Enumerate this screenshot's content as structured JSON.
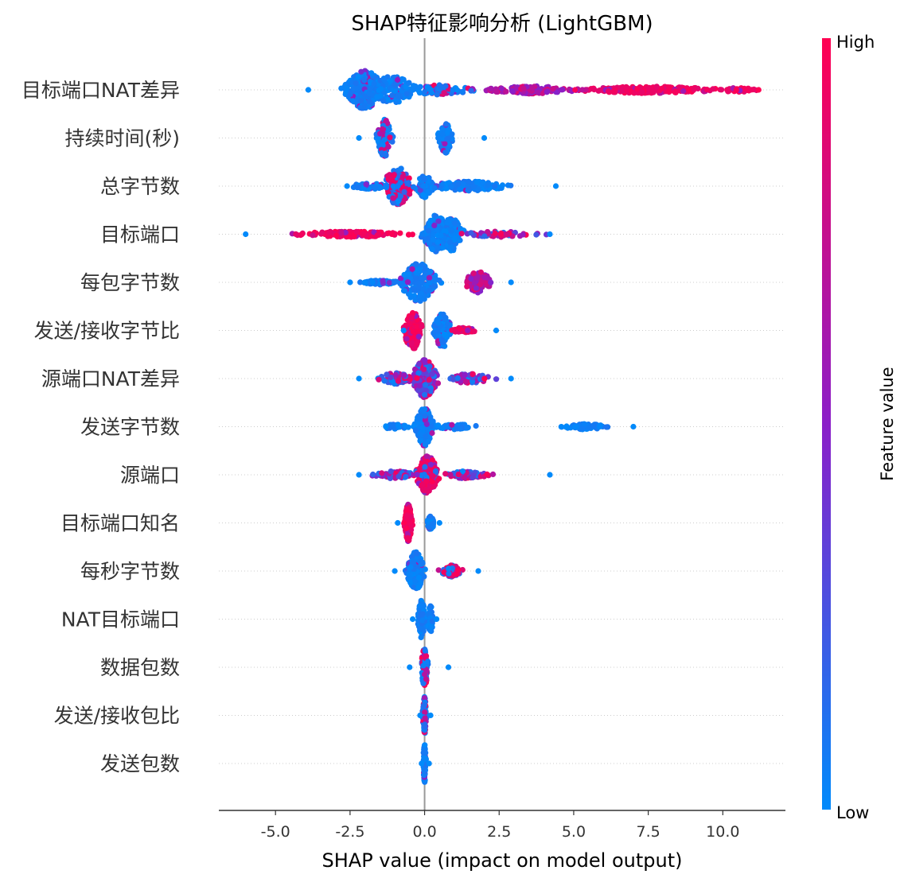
{
  "chart_data": {
    "type": "scatter",
    "subtype": "shap-beeswarm",
    "title": "SHAP特征影响分析 (LightGBM)",
    "xlabel": "SHAP value (impact on model output)",
    "xlim": [
      -6.9,
      12.1
    ],
    "xticks": [
      -5.0,
      -2.5,
      0.0,
      2.5,
      5.0,
      7.5,
      10.0
    ],
    "xtick_labels": [
      "-5.0",
      "-2.5",
      "0.0",
      "2.5",
      "5.0",
      "7.5",
      "10.0"
    ],
    "zero_line": 0.0,
    "colorbar": {
      "label": "Feature value",
      "high": "High",
      "low": "Low",
      "low_color": "#008afb",
      "high_color": "#ff0052",
      "mid_color": "#8b1ec8"
    },
    "features": [
      {
        "name": "目标端口NAT差异",
        "clusters": [
          {
            "c": -2.0,
            "s": 0.55,
            "n": 220,
            "h": 1.0,
            "col": "low"
          },
          {
            "c": -1.1,
            "s": 0.7,
            "n": 120,
            "h": 0.7,
            "col": "low"
          },
          {
            "c": 0.5,
            "s": 0.9,
            "n": 80,
            "h": 0.25,
            "col": "mixlow"
          },
          {
            "c": 3.5,
            "s": 1.3,
            "n": 120,
            "h": 0.2,
            "col": "mid"
          },
          {
            "c": 7.5,
            "s": 1.9,
            "n": 200,
            "h": 0.18,
            "col": "high"
          },
          {
            "c": 10.5,
            "s": 0.5,
            "n": 30,
            "h": 0.12,
            "col": "high"
          }
        ],
        "min": -3.9,
        "max": 11.2
      },
      {
        "name": "持续时间(秒)",
        "clusters": [
          {
            "c": -1.35,
            "s": 0.2,
            "n": 110,
            "h": 1.0,
            "col": "lowmix"
          },
          {
            "c": 0.7,
            "s": 0.2,
            "n": 90,
            "h": 0.8,
            "col": "low"
          }
        ],
        "min": -2.2,
        "max": 2.0
      },
      {
        "name": "总字节数",
        "clusters": [
          {
            "c": -0.9,
            "s": 0.4,
            "n": 160,
            "h": 1.0,
            "col": "mixhigh"
          },
          {
            "c": 0.0,
            "s": 0.25,
            "n": 60,
            "h": 0.6,
            "col": "low"
          },
          {
            "c": 1.5,
            "s": 1.1,
            "n": 130,
            "h": 0.25,
            "col": "low"
          },
          {
            "c": -1.8,
            "s": 0.6,
            "n": 60,
            "h": 0.15,
            "col": "low"
          }
        ],
        "min": -2.6,
        "max": 4.4
      },
      {
        "name": "目标端口",
        "clusters": [
          {
            "c": 0.4,
            "s": 0.35,
            "n": 170,
            "h": 1.0,
            "col": "low"
          },
          {
            "c": 0.9,
            "s": 0.3,
            "n": 100,
            "h": 0.9,
            "col": "low"
          },
          {
            "c": -2.5,
            "s": 1.5,
            "n": 160,
            "h": 0.15,
            "col": "high"
          },
          {
            "c": 2.5,
            "s": 1.0,
            "n": 60,
            "h": 0.15,
            "col": "mix"
          }
        ],
        "min": -6.0,
        "max": 4.2
      },
      {
        "name": "每包字节数",
        "clusters": [
          {
            "c": -0.2,
            "s": 0.5,
            "n": 190,
            "h": 1.0,
            "col": "low"
          },
          {
            "c": 1.8,
            "s": 0.4,
            "n": 110,
            "h": 0.55,
            "col": "mid"
          },
          {
            "c": -1.5,
            "s": 0.5,
            "n": 60,
            "h": 0.12,
            "col": "low"
          }
        ],
        "min": -2.5,
        "max": 2.9
      },
      {
        "name": "发送/接收字节比",
        "clusters": [
          {
            "c": -0.4,
            "s": 0.25,
            "n": 130,
            "h": 1.0,
            "col": "high"
          },
          {
            "c": 0.6,
            "s": 0.25,
            "n": 100,
            "h": 0.9,
            "col": "low"
          },
          {
            "c": 1.3,
            "s": 0.35,
            "n": 50,
            "h": 0.15,
            "col": "high"
          }
        ],
        "min": -0.7,
        "max": 2.4
      },
      {
        "name": "源端口NAT差异",
        "clusters": [
          {
            "c": 0.0,
            "s": 0.35,
            "n": 230,
            "h": 1.0,
            "col": "mix"
          },
          {
            "c": -1.0,
            "s": 0.5,
            "n": 60,
            "h": 0.3,
            "col": "mix"
          },
          {
            "c": 1.5,
            "s": 0.6,
            "n": 70,
            "h": 0.25,
            "col": "mix"
          }
        ],
        "min": -2.2,
        "max": 2.9
      },
      {
        "name": "发送字节数",
        "clusters": [
          {
            "c": 0.0,
            "s": 0.25,
            "n": 170,
            "h": 1.0,
            "col": "low"
          },
          {
            "c": -1.0,
            "s": 0.4,
            "n": 30,
            "h": 0.12,
            "col": "low"
          },
          {
            "c": 1.0,
            "s": 0.6,
            "n": 40,
            "h": 0.15,
            "col": "low"
          },
          {
            "c": 5.4,
            "s": 0.6,
            "n": 60,
            "h": 0.15,
            "col": "low"
          }
        ],
        "min": -1.3,
        "max": 7.0
      },
      {
        "name": "源端口",
        "clusters": [
          {
            "c": 0.1,
            "s": 0.3,
            "n": 180,
            "h": 1.0,
            "col": "highmix"
          },
          {
            "c": -1.0,
            "s": 0.6,
            "n": 70,
            "h": 0.2,
            "col": "mix"
          },
          {
            "c": 1.4,
            "s": 0.6,
            "n": 70,
            "h": 0.2,
            "col": "mix"
          }
        ],
        "min": -2.2,
        "max": 4.2
      },
      {
        "name": "目标端口知名",
        "clusters": [
          {
            "c": -0.55,
            "s": 0.1,
            "n": 150,
            "h": 1.0,
            "col": "high"
          },
          {
            "c": 0.2,
            "s": 0.1,
            "n": 60,
            "h": 0.35,
            "col": "low"
          }
        ],
        "min": -0.9,
        "max": 0.5
      },
      {
        "name": "每秒字节数",
        "clusters": [
          {
            "c": -0.3,
            "s": 0.25,
            "n": 140,
            "h": 1.0,
            "col": "low"
          },
          {
            "c": 0.9,
            "s": 0.3,
            "n": 60,
            "h": 0.3,
            "col": "mixhigh"
          }
        ],
        "min": -1.0,
        "max": 1.8
      },
      {
        "name": "NAT目标端口",
        "clusters": [
          {
            "c": -0.1,
            "s": 0.1,
            "n": 100,
            "h": 1.0,
            "col": "low"
          },
          {
            "c": 0.2,
            "s": 0.1,
            "n": 50,
            "h": 0.7,
            "col": "low"
          }
        ],
        "min": -0.4,
        "max": 0.4
      },
      {
        "name": "数据包数",
        "clusters": [
          {
            "c": 0.0,
            "s": 0.1,
            "n": 110,
            "h": 1.0,
            "col": "lowmix"
          }
        ],
        "min": -0.5,
        "max": 0.8
      },
      {
        "name": "发送/接收包比",
        "clusters": [
          {
            "c": 0.0,
            "s": 0.05,
            "n": 80,
            "h": 1.0,
            "col": "mixlow"
          }
        ],
        "min": -0.15,
        "max": 0.2
      },
      {
        "name": "发送包数",
        "clusters": [
          {
            "c": 0.0,
            "s": 0.04,
            "n": 80,
            "h": 1.0,
            "col": "low"
          }
        ],
        "min": -0.1,
        "max": 0.15
      }
    ]
  }
}
